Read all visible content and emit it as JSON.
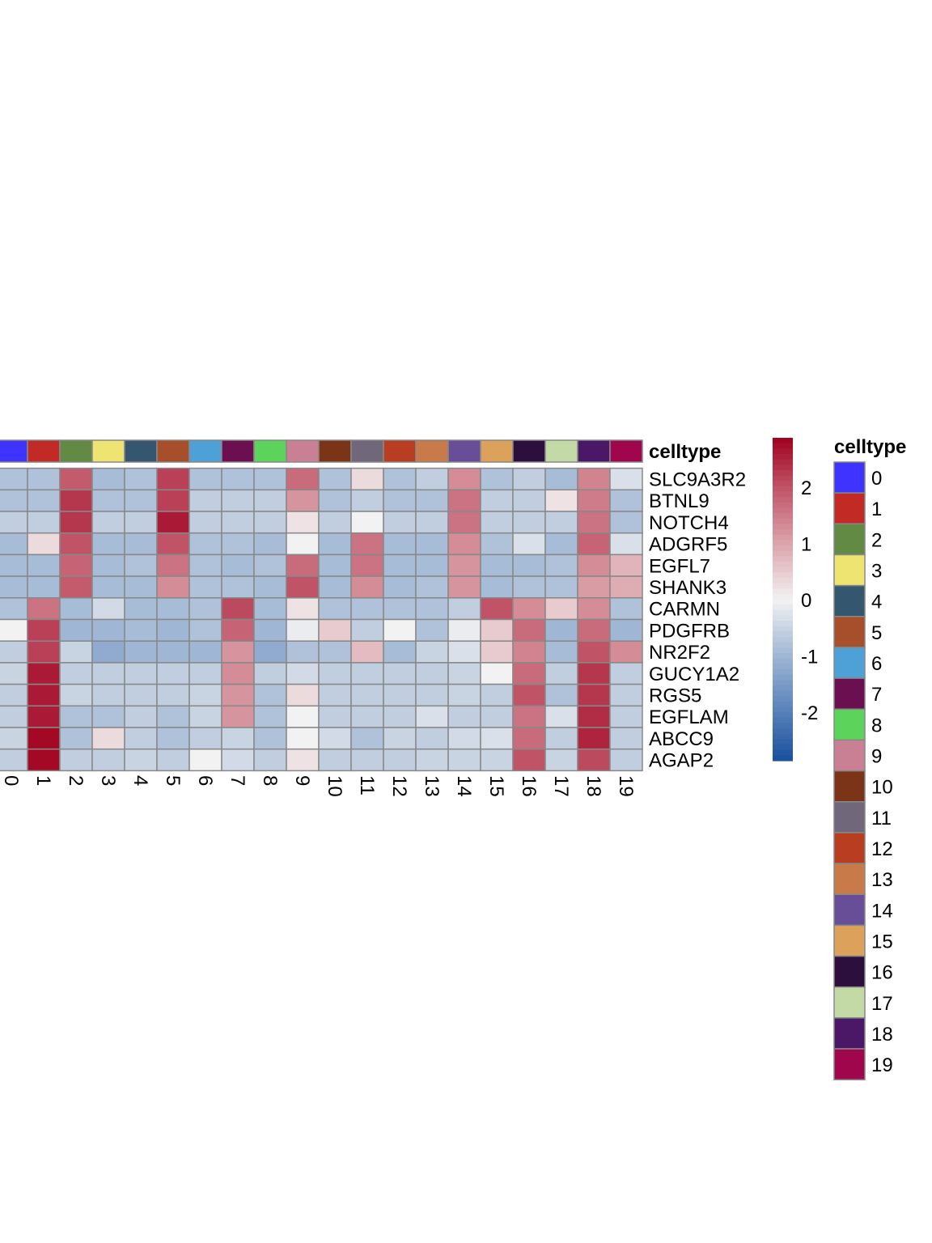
{
  "chart_data": {
    "type": "heatmap",
    "columns": [
      "0",
      "1",
      "2",
      "3",
      "4",
      "5",
      "6",
      "7",
      "8",
      "9",
      "10",
      "11",
      "12",
      "13",
      "14",
      "15",
      "16",
      "17",
      "18",
      "19"
    ],
    "rows": [
      "SLC9A3R2",
      "BTNL9",
      "NOTCH4",
      "ADGRF5",
      "EGFL7",
      "SHANK3",
      "CARMN",
      "PDGFRB",
      "NR2F2",
      "GUCY1A2",
      "RGS5",
      "EGFLAM",
      "ABCC9",
      "AGAP2"
    ],
    "values": [
      [
        -0.8,
        -0.8,
        1.9,
        -0.9,
        -0.8,
        2.2,
        -0.8,
        -0.8,
        -0.8,
        1.7,
        -0.8,
        0.3,
        -0.8,
        -0.6,
        1.3,
        -0.8,
        -0.6,
        -0.9,
        1.4,
        -0.3
      ],
      [
        -0.8,
        -0.8,
        2.3,
        -0.8,
        -0.8,
        2.2,
        -0.6,
        -0.6,
        -0.6,
        1.2,
        -0.8,
        -0.6,
        -0.8,
        -0.8,
        1.6,
        -0.6,
        -0.6,
        0.2,
        1.5,
        -0.8
      ],
      [
        -0.6,
        -0.6,
        2.3,
        -0.6,
        -0.6,
        2.6,
        -0.6,
        -0.6,
        -0.6,
        0.2,
        -0.6,
        0.0,
        -0.6,
        -0.6,
        1.6,
        -0.6,
        -0.6,
        -0.6,
        1.6,
        -0.8
      ],
      [
        -0.9,
        0.3,
        2.0,
        -0.9,
        -0.9,
        2.0,
        -0.8,
        -0.8,
        -0.9,
        0.0,
        -0.9,
        1.6,
        -0.9,
        -0.9,
        1.3,
        -0.8,
        -0.3,
        -0.9,
        1.8,
        -0.3
      ],
      [
        -0.9,
        -0.9,
        1.8,
        -0.9,
        -0.8,
        1.6,
        -0.8,
        -0.9,
        -0.8,
        1.7,
        -0.9,
        1.6,
        -0.9,
        -0.9,
        1.2,
        -0.9,
        -0.9,
        -0.8,
        1.3,
        0.8
      ],
      [
        -0.9,
        -0.9,
        1.9,
        -0.9,
        -0.9,
        1.3,
        -0.8,
        -0.8,
        -0.9,
        2.0,
        -0.9,
        1.3,
        -0.9,
        -0.8,
        1.2,
        -0.9,
        -0.8,
        -0.8,
        1.1,
        0.9
      ],
      [
        -0.8,
        1.6,
        -0.9,
        -0.4,
        -0.9,
        -0.9,
        -0.8,
        2.1,
        -0.9,
        0.2,
        -0.8,
        -0.8,
        -0.8,
        -0.8,
        -0.6,
        2.0,
        1.3,
        0.5,
        1.3,
        -0.8
      ],
      [
        0.0,
        2.2,
        -1.0,
        -1.0,
        -0.9,
        -1.0,
        -0.8,
        1.8,
        -1.0,
        -0.1,
        0.5,
        -0.6,
        0.0,
        -0.8,
        -0.1,
        0.5,
        1.7,
        -1.0,
        1.7,
        -1.0
      ],
      [
        -0.6,
        2.2,
        -0.5,
        -1.2,
        -1.0,
        -1.0,
        -1.0,
        1.2,
        -1.2,
        -0.8,
        -0.8,
        0.7,
        -0.9,
        -0.5,
        -0.3,
        0.5,
        1.4,
        -0.9,
        2.0,
        1.3
      ],
      [
        -0.5,
        2.6,
        -0.6,
        -0.6,
        -0.6,
        -0.6,
        -0.6,
        1.3,
        -0.6,
        -0.4,
        -0.6,
        -0.6,
        -0.6,
        -0.6,
        -0.5,
        0.0,
        1.7,
        -0.6,
        2.3,
        -0.6
      ],
      [
        -0.6,
        2.6,
        -0.5,
        -0.6,
        -0.6,
        -0.6,
        -0.5,
        1.2,
        -0.8,
        0.3,
        -0.6,
        -0.6,
        -0.6,
        -0.6,
        -0.5,
        -0.6,
        2.0,
        -0.8,
        2.3,
        -0.6
      ],
      [
        -0.6,
        2.6,
        -0.8,
        -0.8,
        -0.6,
        -0.8,
        -0.5,
        1.2,
        -0.8,
        0.0,
        -0.6,
        -0.6,
        -0.6,
        -0.3,
        -0.6,
        -0.6,
        1.6,
        -0.3,
        2.4,
        -0.6
      ],
      [
        -0.5,
        2.8,
        -0.8,
        0.3,
        -0.6,
        -0.8,
        -0.6,
        -0.5,
        -0.8,
        0.0,
        -0.4,
        -0.8,
        -0.5,
        -0.6,
        -0.4,
        -0.3,
        1.7,
        -0.6,
        2.5,
        -0.6
      ],
      [
        -0.6,
        2.8,
        -0.6,
        -0.6,
        -0.5,
        -0.6,
        0.0,
        -0.4,
        -0.6,
        0.2,
        -0.6,
        -0.6,
        -0.6,
        -0.5,
        -0.5,
        -0.5,
        2.0,
        -0.5,
        2.1,
        -0.6
      ]
    ],
    "annotation": {
      "title": "celltype",
      "colors": [
        "#3f33ff",
        "#c22a26",
        "#628a44",
        "#eee472",
        "#35566f",
        "#a74f2b",
        "#4ea1d6",
        "#6b0f51",
        "#5cd35a",
        "#c97f94",
        "#7b3418",
        "#70687a",
        "#b93d20",
        "#c97a49",
        "#684e97",
        "#dca15a",
        "#2d0f3e",
        "#c3daa6",
        "#4a1866",
        "#a0064b"
      ]
    },
    "legend": {
      "title": "celltype",
      "labels": [
        "0",
        "1",
        "2",
        "3",
        "4",
        "5",
        "6",
        "7",
        "8",
        "9",
        "10",
        "11",
        "12",
        "13",
        "14",
        "15",
        "16",
        "17",
        "18",
        "19"
      ]
    },
    "colorbar": {
      "ticks": [
        "2",
        "1",
        "0",
        "-1",
        "-2"
      ],
      "tick_values": [
        2,
        1,
        0,
        -1,
        -2
      ],
      "range": [
        -2.86,
        2.88
      ],
      "colors": [
        "#1a4f9c",
        "#5680b9",
        "#9fb6d4",
        "#f2f2f2",
        "#dca4ac",
        "#c05366",
        "#a0001f"
      ]
    }
  }
}
